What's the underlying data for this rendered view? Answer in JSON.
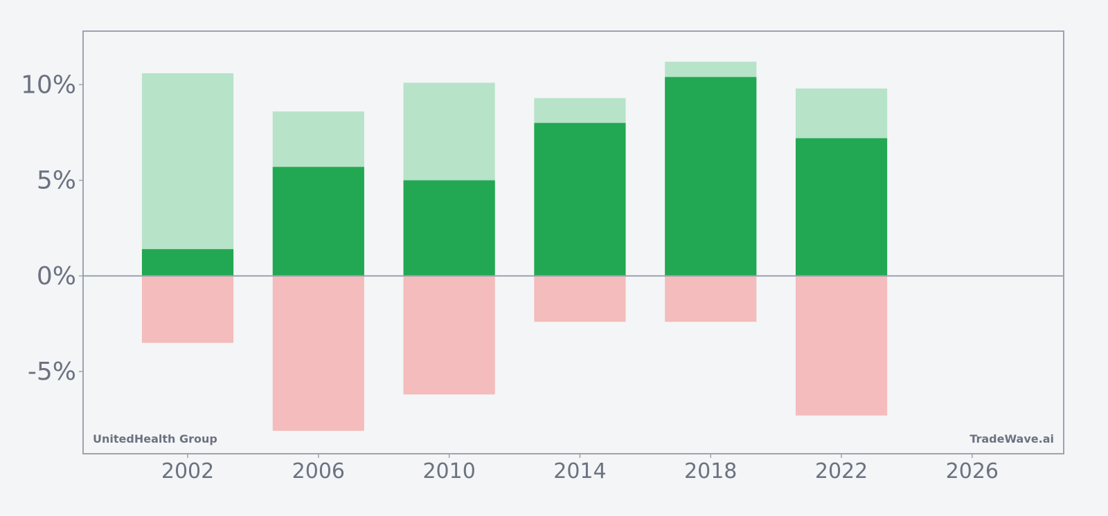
{
  "chart_data": {
    "type": "bar",
    "x": [
      2002,
      2006,
      2010,
      2014,
      2018,
      2022
    ],
    "series": [
      {
        "role": "high",
        "values": [
          10.6,
          8.6,
          10.1,
          9.3,
          11.2,
          9.8
        ]
      },
      {
        "role": "value",
        "values": [
          1.4,
          5.7,
          5.0,
          8.0,
          10.4,
          7.2
        ]
      },
      {
        "role": "low",
        "values": [
          -3.5,
          -8.1,
          -6.2,
          -2.4,
          -2.4,
          -7.3
        ]
      }
    ],
    "xlim": [
      1998.8,
      2028.8
    ],
    "ylim": [
      -9.3,
      12.8
    ],
    "xticks": [
      2002,
      2006,
      2010,
      2014,
      2018,
      2022,
      2026
    ],
    "yticks": [
      -5,
      0,
      5,
      10
    ],
    "ytick_labels": [
      "-5%",
      "0%",
      "5%",
      "10%"
    ],
    "colors": {
      "value": "#22a852",
      "high": "#b7e3c9",
      "low": "#f4bcbc",
      "axis": "#9ca3af",
      "text": "#6b7280",
      "background": "#f4f5f7"
    },
    "grid": false,
    "legend": "none"
  },
  "labels": {
    "company": "UnitedHealth Group",
    "watermark": "TradeWave.ai"
  }
}
